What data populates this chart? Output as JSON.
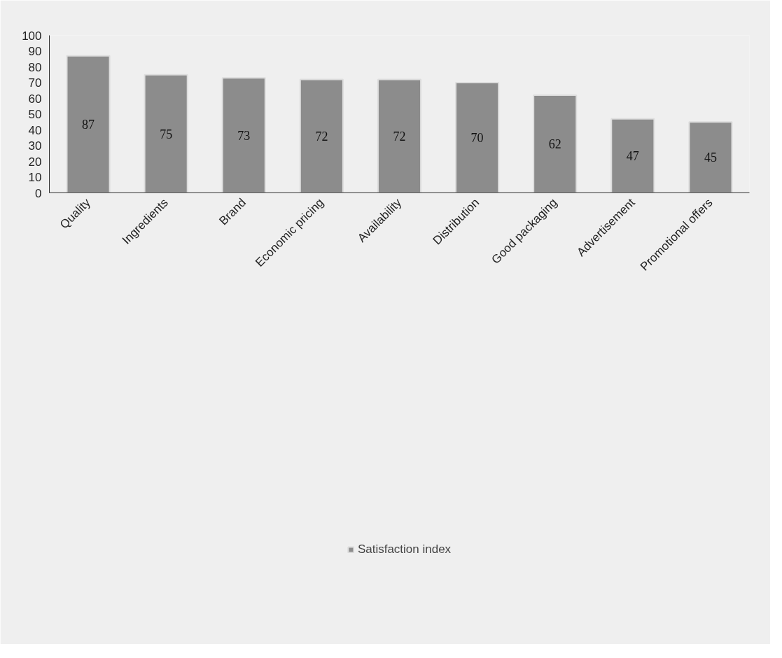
{
  "chart_data": {
    "type": "bar",
    "categories": [
      "Quality",
      "Ingredients",
      "Brand",
      "Economic pricing",
      "Availability",
      "Distribution",
      "Good packaging",
      "Advertisement",
      "Promotional offers"
    ],
    "series": [
      {
        "name": "Satisfaction index",
        "color": "#8c8c8c",
        "values": [
          87,
          75,
          73,
          72,
          72,
          70,
          62,
          47,
          45
        ]
      }
    ],
    "ylim": [
      0,
      100
    ],
    "yticks": [
      0,
      10,
      20,
      30,
      40,
      50,
      60,
      70,
      80,
      90,
      100
    ],
    "data_labels": true,
    "legend": "bottom",
    "grid": false
  }
}
